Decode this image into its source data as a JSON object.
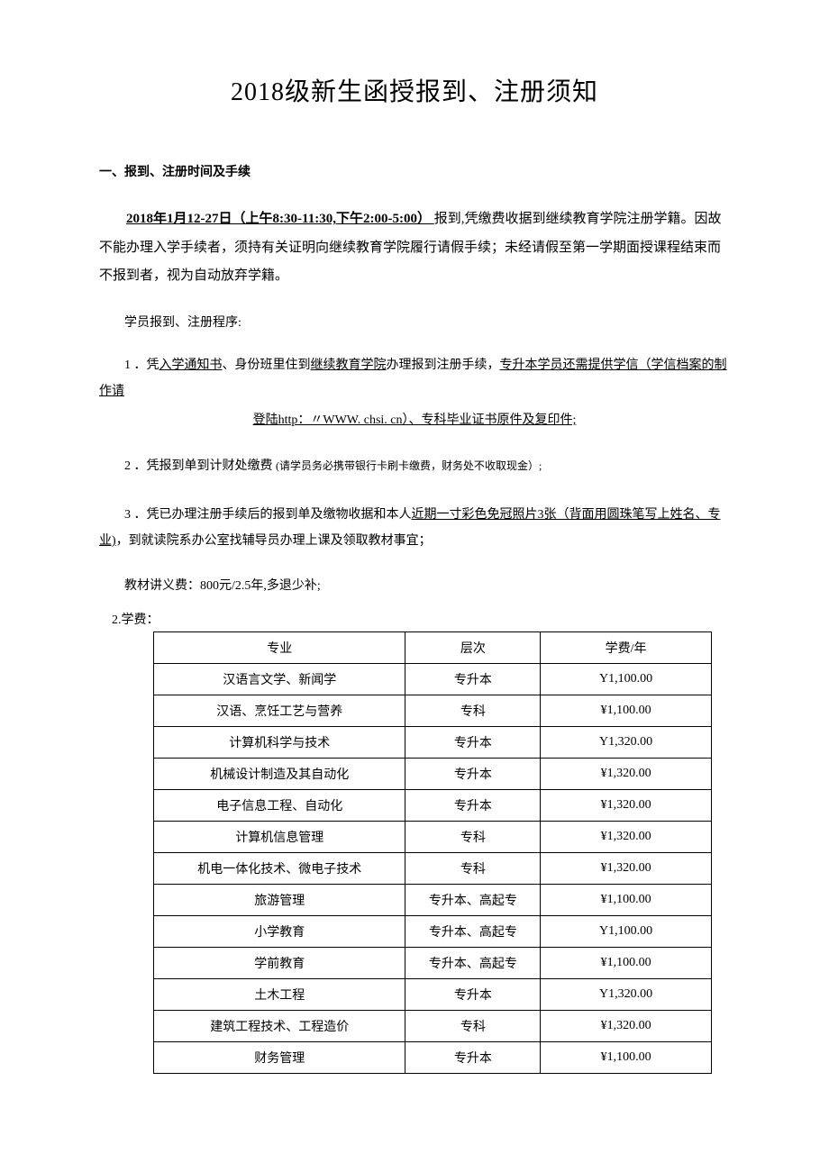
{
  "title": "2018级新生函授报到、注册须知",
  "section1_header": "一、报到、注册时间及手续",
  "para1_a": "2018",
  "para1_b": "年",
  "para1_c": "1",
  "para1_d": "月",
  "para1_e": "12-27",
  "para1_f": "日（上午",
  "para1_g": "8:30-11:30,",
  "para1_h": "下午",
  "para1_i": "2:00-5:00）",
  "para1_rest": "报到,凭缴费收据到继续教育学院注册学籍。因故不能办理入学手续者，须持有关证明向继续教育学院履行请假手续；未经请假至第一学期面授课程结束而不报到者，视为自动放弃学籍。",
  "sub_header": "学员报到、注册程序:",
  "item1_prefix": "1 ．凭",
  "item1_u1": "入学通知书",
  "item1_mid1": "、身份班里住到",
  "item1_u2": "继续教育学院",
  "item1_mid2": "办理报到注册手续，",
  "item1_u3": "专升本学员还需提供学信（学信档案的制作请",
  "item1_line2": "登陆http：〃WWW. chsi. cn）、专科毕业证书原件及复印件;",
  "item2_prefix": "2 ．凭报到单到计财处缴费 ",
  "item2_note": "(请学员务必携带银行卡刷卡缴费，财务处不收取现金）;",
  "item3_prefix": "3 ．凭已办理注册手续后的报到单及缴物收据和本人",
  "item3_u1": "近期一寸彩色免冠照片3张（背面用圆珠笔写上姓名、专",
  "item3_u2": "业)",
  "item3_rest": "，到就读院系办公室找辅导员办理上课及领取教材事宜；",
  "fee_note": "教材讲义费：800元/2.5年,多退少补;",
  "tuition_label": "2.学费：",
  "table": {
    "headers": [
      "专业",
      "层次",
      "学费/年"
    ],
    "rows": [
      [
        "汉语言文学、新闻学",
        "专升本",
        "Y1,100.00"
      ],
      [
        "汉语、烹饪工艺与营养",
        "专科",
        "¥1,100.00"
      ],
      [
        "计算机科学与技术",
        "专升本",
        "Y1,320.00"
      ],
      [
        "机械设计制造及其自动化",
        "专升本",
        "¥1,320.00"
      ],
      [
        "电子信息工程、自动化",
        "专升本",
        "¥1,320.00"
      ],
      [
        "计算机信息管理",
        "专科",
        "¥1,320.00"
      ],
      [
        "机电一体化技术、微电子技术",
        "专科",
        "¥1,320.00"
      ],
      [
        "旅游管理",
        "专升本、高起专",
        "¥1,100.00"
      ],
      [
        "小学教育",
        "专升本、高起专",
        "Y1,100.00"
      ],
      [
        "学前教育",
        "专升本、高起专",
        "¥1,100.00"
      ],
      [
        "土木工程",
        "专升本",
        "Y1,320.00"
      ],
      [
        "建筑工程技术、工程造价",
        "专科",
        "¥1,320.00"
      ],
      [
        "财务管理",
        "专升本",
        "¥1,100.00"
      ]
    ]
  }
}
